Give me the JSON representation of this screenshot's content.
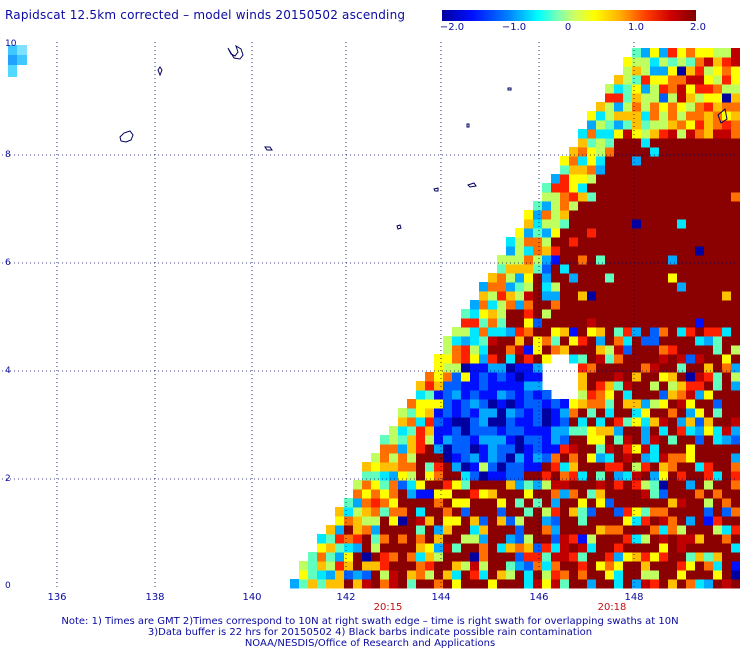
{
  "title": "Rapidscat 12.5km corrected – model winds 20150502 ascending",
  "colorbar": {
    "labels": [
      "−2.0",
      "−1.0",
      "0",
      "1.0",
      "2.0"
    ],
    "min": -2.0,
    "max": 2.0
  },
  "axes": {
    "x_ticks": [
      "136",
      "138",
      "140",
      "142",
      "144",
      "146",
      "148"
    ],
    "y_ticks": [
      "10",
      "8",
      "6",
      "4",
      "2",
      "0"
    ]
  },
  "swath_times": [
    "20:15",
    "20:18"
  ],
  "notes": [
    "Note: 1) Times are GMT 2)Times correspond to 10N at right swath edge – time is right swath for overlapping swaths at 10N",
    "3)Data buffer is 22 hrs for 20150502 4) Black barbs indicate possible rain contamination",
    "NOAA/NESDIS/Office of Research and Applications"
  ],
  "colors": {
    "background": "#ffffff",
    "text": "#0a0aa0",
    "coastline": "#000060",
    "time_label": "#c01010",
    "strong_positive": "#8b0000"
  },
  "map": {
    "lon_range": [
      135,
      150
    ],
    "lat_range": [
      0,
      10
    ],
    "field": "corrected minus model wind speed difference",
    "swath_edge": "diagonal left edge from lower-left to upper-right"
  }
}
